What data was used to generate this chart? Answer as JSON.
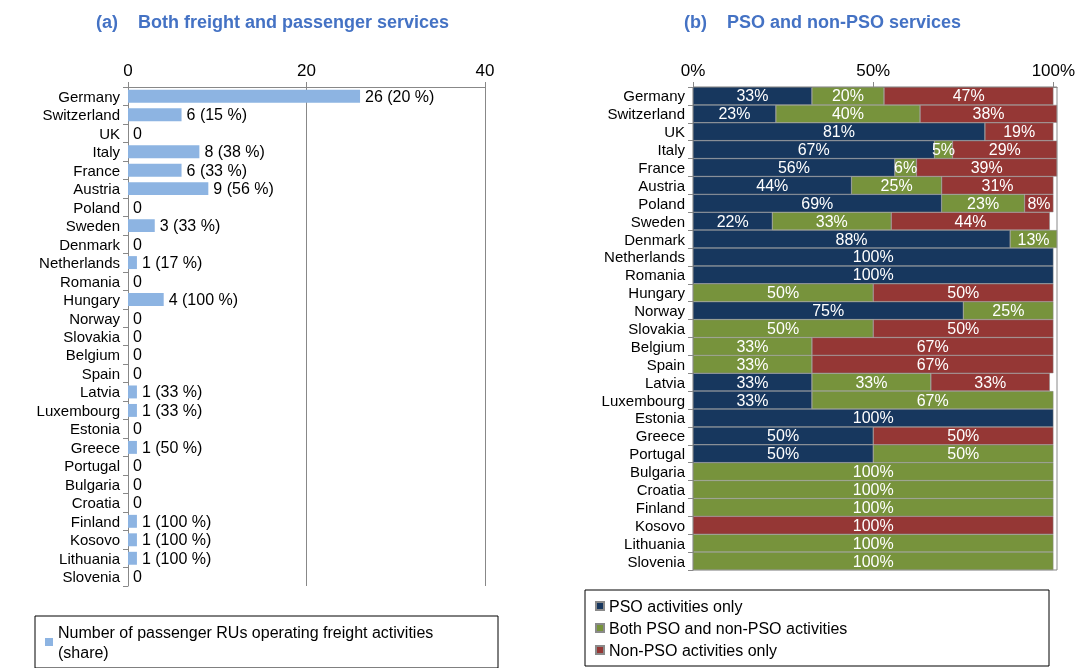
{
  "chart_data": [
    {
      "type": "bar",
      "title": "(a)    Both freight and passenger services",
      "orientation": "horizontal",
      "categories": [
        "Germany",
        "Switzerland",
        "UK",
        "Italy",
        "France",
        "Austria",
        "Poland",
        "Sweden",
        "Denmark",
        "Netherlands",
        "Romania",
        "Hungary",
        "Norway",
        "Slovakia",
        "Belgium",
        "Spain",
        "Latvia",
        "Luxembourg",
        "Estonia",
        "Greece",
        "Portugal",
        "Bulgaria",
        "Croatia",
        "Finland",
        "Kosovo",
        "Lithuania",
        "Slovenia"
      ],
      "series": [
        {
          "name": "Number of passenger RUs operating freight activities (share)",
          "color": "#8db4e2",
          "values": [
            26,
            6,
            0,
            8,
            6,
            9,
            0,
            3,
            0,
            1,
            0,
            4,
            0,
            0,
            0,
            0,
            1,
            1,
            0,
            1,
            0,
            0,
            0,
            1,
            1,
            1,
            0
          ],
          "value_labels": [
            "26 (20 %)",
            "6 (15 %)",
            "0",
            "8 (38 %)",
            "6 (33 %)",
            "9 (56 %)",
            "0",
            "3 (33 %)",
            "0",
            "1 (17 %)",
            "0",
            "4 (100 %)",
            "0",
            "0",
            "0",
            "0",
            "1 (33 %)",
            "1 (33 %)",
            "0",
            "1 (50 %)",
            "0",
            "0",
            "0",
            "1 (100 %)",
            "1 (100 %)",
            "1 (100 %)",
            "0"
          ]
        }
      ],
      "xlim": [
        0,
        40
      ],
      "xticks": [
        0,
        20,
        40
      ],
      "grid": "x",
      "legend": "bottom"
    },
    {
      "type": "bar",
      "title": "(b)    PSO and non-PSO services",
      "orientation": "horizontal",
      "stacked": true,
      "categories": [
        "Germany",
        "Switzerland",
        "UK",
        "Italy",
        "France",
        "Austria",
        "Poland",
        "Sweden",
        "Denmark",
        "Netherlands",
        "Romania",
        "Hungary",
        "Norway",
        "Slovakia",
        "Belgium",
        "Spain",
        "Latvia",
        "Luxembourg",
        "Estonia",
        "Greece",
        "Portugal",
        "Bulgaria",
        "Croatia",
        "Finland",
        "Kosovo",
        "Lithuania",
        "Slovenia"
      ],
      "series": [
        {
          "name": "PSO activities only",
          "color": "#17375e",
          "values": [
            33,
            23,
            81,
            67,
            56,
            44,
            69,
            22,
            88,
            100,
            100,
            null,
            75,
            null,
            null,
            null,
            33,
            33,
            100,
            50,
            50,
            null,
            null,
            null,
            null,
            null,
            null
          ],
          "value_labels": [
            "33%",
            "23%",
            "81%",
            "67%",
            "56%",
            "44%",
            "69%",
            "22%",
            "88%",
            "100%",
            "100%",
            null,
            "75%",
            null,
            null,
            null,
            "33%",
            "33%",
            "100%",
            "50%",
            "50%",
            null,
            null,
            null,
            null,
            null,
            null
          ]
        },
        {
          "name": "Both PSO and non-PSO activities",
          "color": "#77933c",
          "values": [
            20,
            40,
            null,
            5,
            6,
            25,
            23,
            33,
            13,
            null,
            null,
            50,
            25,
            50,
            33,
            33,
            33,
            67,
            null,
            null,
            50,
            100,
            100,
            100,
            null,
            100,
            100
          ],
          "value_labels": [
            "20%",
            "40%",
            null,
            "5%",
            "6%",
            "25%",
            "23%",
            "33%",
            "13%",
            null,
            null,
            "50%",
            "25%",
            "50%",
            "33%",
            "33%",
            "33%",
            "67%",
            null,
            null,
            "50%",
            "100%",
            "100%",
            "100%",
            null,
            "100%",
            "100%"
          ]
        },
        {
          "name": "Non-PSO activities only",
          "color": "#953735",
          "values": [
            47,
            38,
            19,
            29,
            39,
            31,
            8,
            44,
            null,
            null,
            null,
            50,
            null,
            50,
            67,
            67,
            33,
            null,
            null,
            50,
            null,
            null,
            null,
            null,
            100,
            null,
            null
          ],
          "value_labels": [
            "47%",
            "38%",
            "19%",
            "29%",
            "39%",
            "31%",
            "8%",
            "44%",
            null,
            null,
            null,
            "50%",
            null,
            "50%",
            "67%",
            "67%",
            "33%",
            null,
            null,
            "50%",
            null,
            null,
            null,
            null,
            "100%",
            null,
            null
          ]
        }
      ],
      "xlim": [
        0,
        101
      ],
      "xticks": [
        {
          "value": 0,
          "label": "0%"
        },
        {
          "value": 50,
          "label": "50%"
        },
        {
          "value": 100,
          "label": "100%"
        }
      ],
      "grid": false,
      "legend": "bottom"
    }
  ]
}
